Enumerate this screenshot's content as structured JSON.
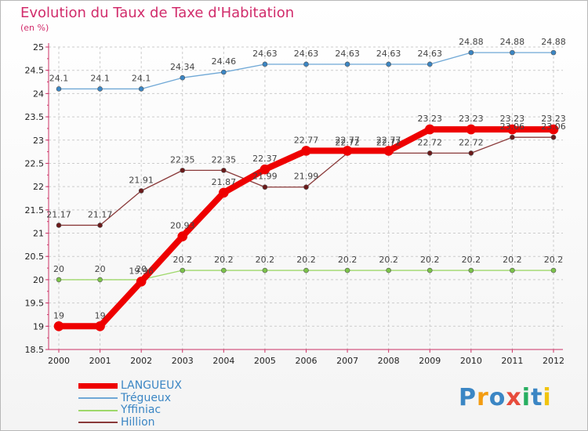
{
  "header": {
    "title": "Evolution du Taux de Taxe d'Habitation",
    "subtitle": "(en %)"
  },
  "chart_data": {
    "type": "line",
    "title": "Evolution du Taux de Taxe d'Habitation",
    "ylabel": "(en %)",
    "xlabel": "",
    "ylim": [
      18.5,
      25
    ],
    "yticks": [
      "18.5",
      "19",
      "19.5",
      "20",
      "20.5",
      "21",
      "21.5",
      "22",
      "22.5",
      "23",
      "23.5",
      "24",
      "24.5",
      "25"
    ],
    "x": [
      "2000",
      "2001",
      "2002",
      "2003",
      "2004",
      "2005",
      "2006",
      "2007",
      "2008",
      "2009",
      "2010",
      "2011",
      "2012"
    ],
    "grid": true,
    "legend_placement": "bottom-left",
    "series": [
      {
        "name": "Trégueux",
        "color": "#6fa8d6",
        "marker": "#3b86c4",
        "values": [
          24.1,
          24.1,
          24.1,
          24.34,
          24.46,
          24.63,
          24.63,
          24.63,
          24.63,
          24.63,
          24.88,
          24.88,
          24.88
        ],
        "labels": [
          "24.1",
          "24.1",
          "24.1",
          "24.34",
          "24.46",
          "24.63",
          "24.63",
          "24.63",
          "24.63",
          "24.63",
          "24.88",
          "24.88",
          "24.88"
        ]
      },
      {
        "name": "Yffiniac",
        "color": "#9ed86a",
        "marker": "#7cc44a",
        "values": [
          20,
          20,
          20,
          20.2,
          20.2,
          20.2,
          20.2,
          20.2,
          20.2,
          20.2,
          20.2,
          20.2,
          20.2
        ],
        "labels": [
          "20",
          "20",
          "20",
          "20.2",
          "20.2",
          "20.2",
          "20.2",
          "20.2",
          "20.2",
          "20.2",
          "20.2",
          "20.2",
          "20.2"
        ]
      },
      {
        "name": "Hillion",
        "color": "#8a3a3a",
        "marker": "#6b1a1a",
        "values": [
          21.17,
          21.17,
          21.91,
          22.35,
          22.35,
          21.99,
          21.99,
          22.72,
          22.72,
          22.72,
          22.72,
          23.06,
          23.06
        ],
        "labels": [
          "21.17",
          "21.17",
          "21.91",
          "22.35",
          "22.35",
          "21.99",
          "21.99",
          "22.72",
          "22.72",
          "22.72",
          "22.72",
          "23.06",
          "23.06"
        ]
      },
      {
        "name": "LANGUEUX",
        "color": "#ee0000",
        "marker": "#ee0000",
        "values": [
          19,
          19,
          19.96,
          20.93,
          21.87,
          22.37,
          22.77,
          22.77,
          22.77,
          23.23,
          23.23,
          23.23,
          23.23
        ],
        "labels": [
          "19",
          "19",
          "19.96",
          "20.93",
          "21.87",
          "22.37",
          "22.77",
          "22.77",
          "22.77",
          "23.23",
          "23.23",
          "23.23",
          "23.23"
        ]
      }
    ]
  },
  "legend": {
    "items": [
      {
        "label": "LANGUEUX",
        "color": "#ee0000"
      },
      {
        "label": "Trégueux",
        "color": "#6fa8d6"
      },
      {
        "label": "Yffiniac",
        "color": "#9ed86a"
      },
      {
        "label": "Hillion",
        "color": "#8a3a3a"
      }
    ]
  },
  "logo": {
    "text": "Proxiti",
    "colors": [
      "#3b86c4",
      "#f39c12",
      "#3b86c4",
      "#e74c3c",
      "#27ae60",
      "#3b86c4",
      "#f1c40f"
    ]
  }
}
